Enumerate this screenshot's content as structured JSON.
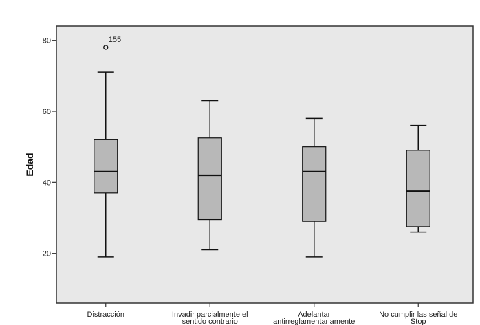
{
  "chart_data": {
    "type": "boxplot",
    "title": "",
    "xlabel": "",
    "ylabel": "Edad",
    "ylim": [
      6,
      84
    ],
    "yticks": [
      20,
      40,
      60,
      80
    ],
    "grid": false,
    "colors": {
      "plot_background": "#e8e8e8",
      "box_fill": "#b8b8b8",
      "line": "#111111"
    },
    "categories": [
      [
        "Distracción"
      ],
      [
        "Invadir parcialmente el",
        "sentido contrario"
      ],
      [
        "Adelantar",
        "antirreglamentariamente"
      ],
      [
        "No cumplir las señal de",
        "Stop"
      ]
    ],
    "boxes": [
      {
        "whisker_low": 19,
        "q1": 37,
        "median": 43,
        "q3": 52,
        "whisker_high": 71,
        "outliers": [
          {
            "value": 78,
            "label": "155"
          }
        ]
      },
      {
        "whisker_low": 21,
        "q1": 29.5,
        "median": 42,
        "q3": 52.5,
        "whisker_high": 63,
        "outliers": []
      },
      {
        "whisker_low": 19,
        "q1": 29,
        "median": 43,
        "q3": 50,
        "whisker_high": 58,
        "outliers": []
      },
      {
        "whisker_low": 26,
        "q1": 27.5,
        "median": 37.5,
        "q3": 49,
        "whisker_high": 56,
        "outliers": []
      }
    ]
  }
}
